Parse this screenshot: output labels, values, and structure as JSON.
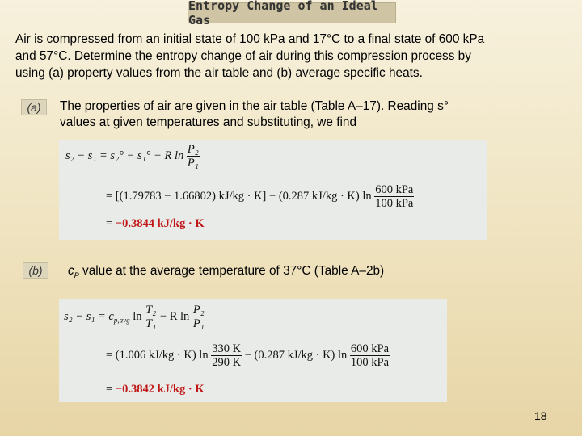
{
  "title": "Entropy Change of an Ideal Gas",
  "intro_lines": [
    "Air is compressed from an initial state of 100 kPa and 17°C to a final state of 600 kPa",
    "and 57°C. Determine the entropy change of air during this compression process by",
    "using (a) property values from the air table and (b) average specific heats."
  ],
  "part_a": {
    "tag": "(a)",
    "text_line1": "The properties of air are given in the air table (Table A–17). Reading s°",
    "text_line2": "values at given temperatures and substituting, we find",
    "eq_line1_lhs": "s₂ − s₁ = s₂° − s₁° − R ln",
    "eq_line1_num": "P₂",
    "eq_line1_den": "P₁",
    "eq_line2_prefix": "= [(1.79783 − 1.66802) kJ/kg · K] − (0.287 kJ/kg · K) ln",
    "eq_line2_num": "600 kPa",
    "eq_line2_den": "100 kPa",
    "eq_line3_prefix": "=",
    "eq_result": "−0.3844 kJ/kg · K"
  },
  "part_b": {
    "tag": "(b)",
    "cp": "c",
    "cp_sub": "P",
    "text": " value at the average temperature of 37°C (Table A–2b)",
    "eq_line1_lhs": "s₂ − s₁ = c",
    "eq_line1_sub": "p,avg",
    "eq_line1_ln": " ln",
    "eq_line1_num1": "T₂",
    "eq_line1_den1": "T₁",
    "eq_line1_mid": " − R ln",
    "eq_line1_num2": "P₂",
    "eq_line1_den2": "P₁",
    "eq_line2_prefix": "= (1.006 kJ/kg · K) ln",
    "eq_line2_num1": "330 K",
    "eq_line2_den1": "290 K",
    "eq_line2_mid": " − (0.287 kJ/kg · K) ln",
    "eq_line2_num2": "600 kPa",
    "eq_line2_den2": "100 kPa",
    "eq_line3_prefix": "=",
    "eq_result": "−0.3842 kJ/kg · K"
  },
  "page_number": "18"
}
